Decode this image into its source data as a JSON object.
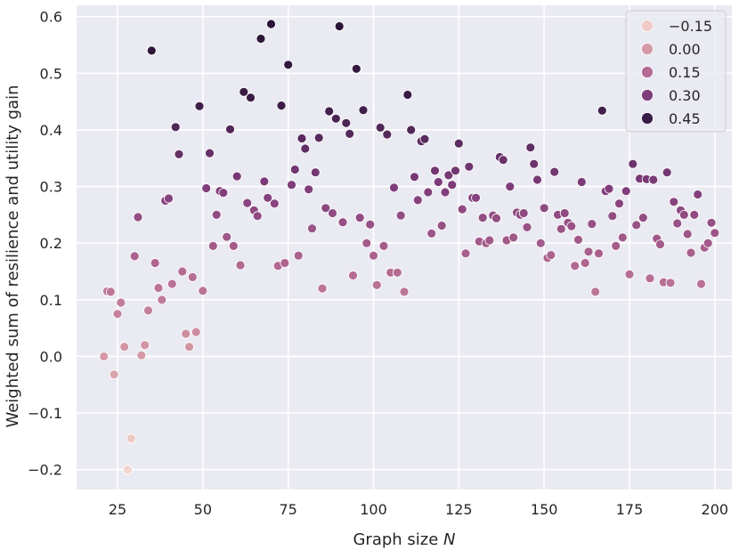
{
  "chart_data": {
    "type": "scatter",
    "title": "",
    "xlabel_main": "Graph size",
    "xlabel_var": "N",
    "ylabel": "Weighted sum of resilience and utility gain",
    "xlim": [
      13,
      205
    ],
    "ylim": [
      -0.235,
      0.62
    ],
    "xticks": [
      25,
      50,
      75,
      100,
      125,
      150,
      175,
      200
    ],
    "xtick_labels": [
      "25",
      "50",
      "75",
      "100",
      "125",
      "150",
      "175",
      "200"
    ],
    "yticks": [
      -0.2,
      -0.1,
      0.0,
      0.1,
      0.2,
      0.3,
      0.4,
      0.5,
      0.6
    ],
    "ytick_labels": [
      "−0.2",
      "−0.1",
      "0.0",
      "0.1",
      "0.2",
      "0.3",
      "0.4",
      "0.5",
      "0.6"
    ],
    "grid": true,
    "background": "#eaeaf2",
    "legend": {
      "placement": "top-right",
      "entries": [
        {
          "label": "−0.15",
          "color": "#eecbc5"
        },
        {
          "label": "0.00",
          "color": "#d59aa6"
        },
        {
          "label": "0.15",
          "color": "#b46a92"
        },
        {
          "label": "0.30",
          "color": "#7f3c7a"
        },
        {
          "label": "0.45",
          "color": "#3a1d46"
        }
      ]
    },
    "hue_range": [
      -0.2,
      0.59
    ],
    "points": [
      [
        21,
        0.0
      ],
      [
        22,
        0.115
      ],
      [
        23,
        0.114
      ],
      [
        24,
        -0.032
      ],
      [
        25,
        0.075
      ],
      [
        26,
        0.095
      ],
      [
        27,
        0.017
      ],
      [
        28,
        -0.2
      ],
      [
        29,
        -0.145
      ],
      [
        30,
        0.177
      ],
      [
        31,
        0.246
      ],
      [
        32,
        0.002
      ],
      [
        33,
        0.02
      ],
      [
        34,
        0.081
      ],
      [
        35,
        0.54
      ],
      [
        36,
        0.165
      ],
      [
        37,
        0.121
      ],
      [
        38,
        0.1
      ],
      [
        39,
        0.275
      ],
      [
        40,
        0.279
      ],
      [
        41,
        0.128
      ],
      [
        42,
        0.405
      ],
      [
        43,
        0.357
      ],
      [
        44,
        0.15
      ],
      [
        45,
        0.04
      ],
      [
        46,
        0.017
      ],
      [
        47,
        0.14
      ],
      [
        48,
        0.043
      ],
      [
        49,
        0.442
      ],
      [
        50,
        0.116
      ],
      [
        51,
        0.297
      ],
      [
        52,
        0.359
      ],
      [
        53,
        0.195
      ],
      [
        54,
        0.25
      ],
      [
        55,
        0.292
      ],
      [
        56,
        0.289
      ],
      [
        57,
        0.211
      ],
      [
        58,
        0.401
      ],
      [
        59,
        0.195
      ],
      [
        60,
        0.318
      ],
      [
        61,
        0.161
      ],
      [
        62,
        0.467
      ],
      [
        63,
        0.271
      ],
      [
        64,
        0.457
      ],
      [
        65,
        0.258
      ],
      [
        66,
        0.248
      ],
      [
        67,
        0.561
      ],
      [
        68,
        0.309
      ],
      [
        69,
        0.28
      ],
      [
        70,
        0.587
      ],
      [
        71,
        0.27
      ],
      [
        72,
        0.16
      ],
      [
        73,
        0.443
      ],
      [
        74,
        0.165
      ],
      [
        75,
        0.515
      ],
      [
        76,
        0.303
      ],
      [
        77,
        0.33
      ],
      [
        78,
        0.178
      ],
      [
        79,
        0.385
      ],
      [
        80,
        0.367
      ],
      [
        81,
        0.295
      ],
      [
        82,
        0.226
      ],
      [
        83,
        0.325
      ],
      [
        84,
        0.386
      ],
      [
        85,
        0.12
      ],
      [
        86,
        0.262
      ],
      [
        87,
        0.433
      ],
      [
        88,
        0.253
      ],
      [
        89,
        0.42
      ],
      [
        90,
        0.583
      ],
      [
        91,
        0.237
      ],
      [
        92,
        0.412
      ],
      [
        93,
        0.393
      ],
      [
        94,
        0.143
      ],
      [
        95,
        0.508
      ],
      [
        96,
        0.245
      ],
      [
        97,
        0.435
      ],
      [
        98,
        0.2
      ],
      [
        99,
        0.233
      ],
      [
        100,
        0.178
      ],
      [
        101,
        0.126
      ],
      [
        102,
        0.404
      ],
      [
        103,
        0.195
      ],
      [
        104,
        0.392
      ],
      [
        105,
        0.148
      ],
      [
        106,
        0.298
      ],
      [
        107,
        0.148
      ],
      [
        108,
        0.249
      ],
      [
        109,
        0.114
      ],
      [
        110,
        0.462
      ],
      [
        111,
        0.4
      ],
      [
        112,
        0.317
      ],
      [
        113,
        0.276
      ],
      [
        114,
        0.38
      ],
      [
        115,
        0.384
      ],
      [
        116,
        0.29
      ],
      [
        117,
        0.217
      ],
      [
        118,
        0.328
      ],
      [
        119,
        0.308
      ],
      [
        120,
        0.231
      ],
      [
        121,
        0.29
      ],
      [
        122,
        0.32
      ],
      [
        123,
        0.303
      ],
      [
        124,
        0.328
      ],
      [
        125,
        0.376
      ],
      [
        126,
        0.26
      ],
      [
        127,
        0.182
      ],
      [
        128,
        0.335
      ],
      [
        129,
        0.28
      ],
      [
        130,
        0.28
      ],
      [
        131,
        0.203
      ],
      [
        132,
        0.245
      ],
      [
        133,
        0.2
      ],
      [
        134,
        0.205
      ],
      [
        135,
        0.249
      ],
      [
        136,
        0.244
      ],
      [
        137,
        0.352
      ],
      [
        138,
        0.347
      ],
      [
        139,
        0.205
      ],
      [
        140,
        0.3
      ],
      [
        141,
        0.21
      ],
      [
        142,
        0.254
      ],
      [
        143,
        0.25
      ],
      [
        144,
        0.253
      ],
      [
        145,
        0.228
      ],
      [
        146,
        0.369
      ],
      [
        147,
        0.34
      ],
      [
        148,
        0.312
      ],
      [
        149,
        0.2
      ],
      [
        150,
        0.262
      ],
      [
        151,
        0.174
      ],
      [
        152,
        0.179
      ],
      [
        153,
        0.326
      ],
      [
        154,
        0.25
      ],
      [
        155,
        0.225
      ],
      [
        156,
        0.253
      ],
      [
        157,
        0.236
      ],
      [
        158,
        0.23
      ],
      [
        159,
        0.16
      ],
      [
        160,
        0.206
      ],
      [
        161,
        0.308
      ],
      [
        162,
        0.165
      ],
      [
        163,
        0.185
      ],
      [
        164,
        0.234
      ],
      [
        165,
        0.114
      ],
      [
        166,
        0.182
      ],
      [
        167,
        0.434
      ],
      [
        168,
        0.292
      ],
      [
        169,
        0.296
      ],
      [
        170,
        0.248
      ],
      [
        171,
        0.195
      ],
      [
        172,
        0.27
      ],
      [
        173,
        0.21
      ],
      [
        174,
        0.292
      ],
      [
        175,
        0.145
      ],
      [
        176,
        0.34
      ],
      [
        177,
        0.232
      ],
      [
        178,
        0.314
      ],
      [
        179,
        0.245
      ],
      [
        180,
        0.313
      ],
      [
        181,
        0.138
      ],
      [
        182,
        0.312
      ],
      [
        183,
        0.208
      ],
      [
        184,
        0.198
      ],
      [
        185,
        0.131
      ],
      [
        186,
        0.325
      ],
      [
        187,
        0.13
      ],
      [
        188,
        0.273
      ],
      [
        189,
        0.235
      ],
      [
        190,
        0.258
      ],
      [
        191,
        0.25
      ],
      [
        192,
        0.216
      ],
      [
        193,
        0.183
      ],
      [
        194,
        0.25
      ],
      [
        195,
        0.286
      ],
      [
        196,
        0.128
      ],
      [
        197,
        0.192
      ],
      [
        198,
        0.2
      ],
      [
        199,
        0.236
      ],
      [
        200,
        0.218
      ]
    ]
  }
}
